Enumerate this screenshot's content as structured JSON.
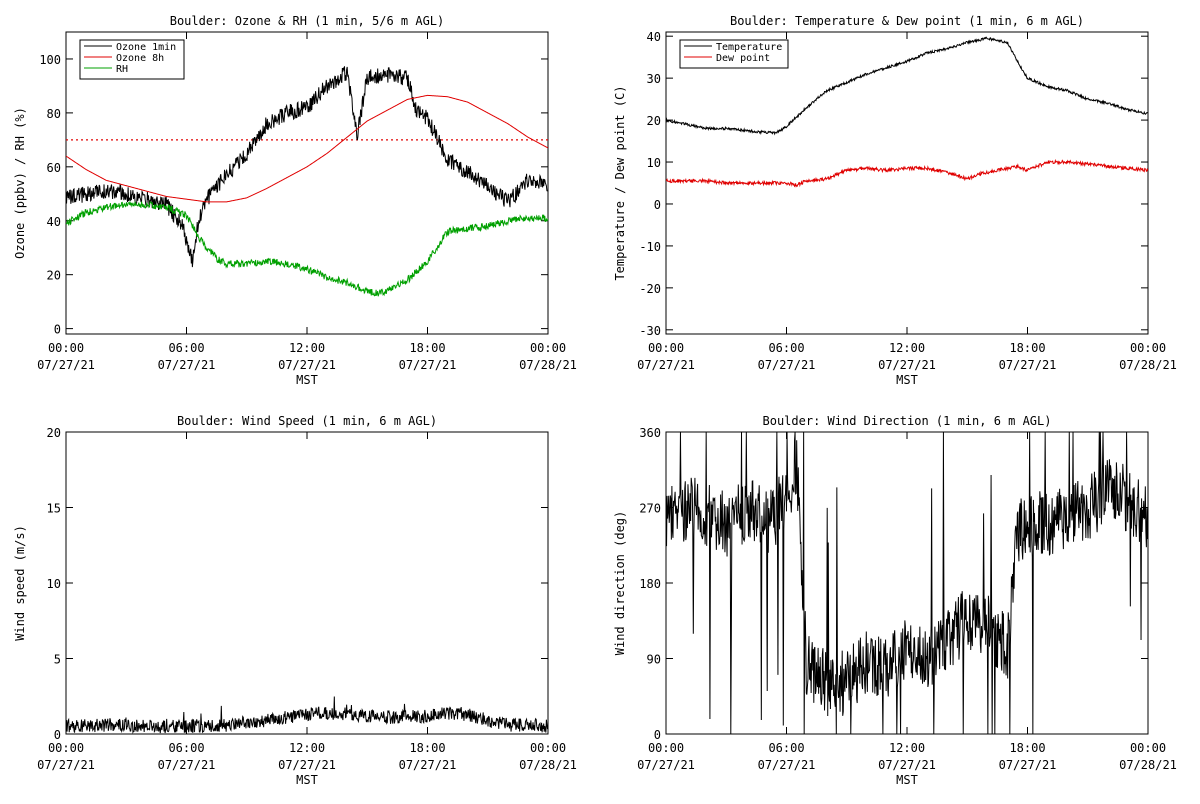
{
  "x_axis": {
    "ticks": [
      {
        "time": "00:00",
        "date": "07/27/21",
        "hour": 0
      },
      {
        "time": "06:00",
        "date": "07/27/21",
        "hour": 6
      },
      {
        "time": "12:00",
        "date": "07/27/21",
        "hour": 12
      },
      {
        "time": "18:00",
        "date": "07/27/21",
        "hour": 18
      },
      {
        "time": "00:00",
        "date": "07/28/21",
        "hour": 24
      }
    ],
    "label": "MST"
  },
  "colors": {
    "black": "#000000",
    "red": "#e00000",
    "green": "#00a000"
  },
  "chart_data": [
    {
      "type": "line",
      "title": "Boulder: Ozone & RH (1 min, 5/6 m AGL)",
      "xlabel": "MST",
      "ylabel": "Ozone (ppbv) / RH (%)",
      "xlim": [
        0,
        24
      ],
      "ylim": [
        -2,
        110
      ],
      "yticks": [
        0,
        20,
        40,
        60,
        80,
        100
      ],
      "threshold_line": {
        "value": 70,
        "color": "#e00000",
        "style": "dotted"
      },
      "legend": {
        "position": "top-left",
        "entries": [
          "Ozone 1min",
          "Ozone 8h",
          "RH"
        ]
      },
      "series": [
        {
          "name": "Ozone 1min",
          "color": "#000000",
          "noise": 3,
          "x": [
            0,
            1,
            2,
            3,
            4,
            5,
            5.8,
            6.3,
            6.6,
            7,
            8,
            9,
            10,
            11,
            12,
            13,
            14,
            14.5,
            15,
            16,
            17,
            17.5,
            18,
            19,
            20,
            21,
            22,
            23,
            24
          ],
          "y": [
            48,
            50,
            51,
            50,
            48,
            46,
            38,
            25,
            40,
            48,
            57,
            65,
            76,
            80,
            82,
            90,
            95,
            72,
            93,
            94,
            93,
            80,
            78,
            63,
            58,
            53,
            47,
            55,
            53
          ]
        },
        {
          "name": "Ozone 8h",
          "color": "#e00000",
          "noise": 0,
          "x": [
            0,
            1,
            2,
            3,
            4,
            5,
            6,
            7,
            8,
            9,
            10,
            11,
            12,
            13,
            14,
            15,
            16,
            17,
            18,
            19,
            20,
            21,
            22,
            23,
            24
          ],
          "y": [
            64,
            59,
            55,
            53,
            51,
            49,
            48,
            47,
            47,
            48.5,
            52,
            56,
            60,
            65,
            71,
            77,
            81,
            85,
            86.5,
            86,
            84,
            80,
            76,
            71,
            67
          ]
        },
        {
          "name": "RH",
          "color": "#00a000",
          "noise": 1.3,
          "x": [
            0,
            1,
            2,
            3,
            4,
            5,
            6,
            6.7,
            7.5,
            8,
            9,
            10,
            11,
            12,
            13,
            14,
            15,
            15.5,
            16,
            17,
            18,
            19,
            20,
            21,
            22,
            23,
            24
          ],
          "y": [
            39,
            43,
            45,
            46,
            46,
            45,
            42,
            33,
            26,
            24,
            24,
            25,
            24,
            22,
            19,
            17,
            14,
            13,
            14,
            18,
            25,
            36,
            37,
            38,
            40,
            41,
            41
          ]
        }
      ]
    },
    {
      "type": "line",
      "title": "Boulder: Temperature & Dew point (1 min, 6 m AGL)",
      "xlabel": "MST",
      "ylabel": "Temperature / Dew point (C)",
      "xlim": [
        0,
        24
      ],
      "ylim": [
        -31,
        41
      ],
      "yticks": [
        -30,
        -20,
        -10,
        0,
        10,
        20,
        30,
        40
      ],
      "legend": {
        "position": "top-left",
        "entries": [
          "Temperature",
          "Dew point"
        ]
      },
      "series": [
        {
          "name": "Temperature",
          "color": "#000000",
          "noise": 0.3,
          "x": [
            0,
            1,
            2,
            3,
            4,
            5,
            5.5,
            6,
            7,
            8,
            9,
            10,
            11,
            12,
            13,
            14,
            15,
            16,
            17,
            17.5,
            18,
            19,
            20,
            21,
            22,
            23,
            24
          ],
          "y": [
            20,
            19,
            18,
            18,
            17.5,
            17,
            17,
            18.5,
            23,
            27,
            29,
            31,
            32.5,
            34,
            36,
            37,
            38.5,
            39.5,
            38.5,
            34,
            30,
            28,
            27,
            25,
            24,
            22.5,
            21.5
          ]
        },
        {
          "name": "Dew point",
          "color": "#e00000",
          "noise": 0.4,
          "x": [
            0,
            1,
            2,
            3,
            4,
            5,
            6,
            6.5,
            7,
            8,
            9,
            10,
            11,
            12,
            13,
            14,
            15,
            15.5,
            16,
            17,
            17.5,
            18,
            19,
            20,
            21,
            22,
            23,
            24
          ],
          "y": [
            5.5,
            5.5,
            5.5,
            5,
            5,
            5,
            5,
            4.5,
            5.5,
            6,
            8,
            8.5,
            8,
            8.5,
            8.5,
            7.5,
            6,
            7,
            7.5,
            8.5,
            9,
            8,
            10,
            10,
            9.5,
            9,
            8.5,
            8
          ]
        }
      ]
    },
    {
      "type": "line",
      "title": "Boulder: Wind Speed (1 min, 6 m AGL)",
      "xlabel": "MST",
      "ylabel": "Wind speed (m/s)",
      "xlim": [
        0,
        24
      ],
      "ylim": [
        0,
        20
      ],
      "yticks": [
        0,
        5,
        10,
        15,
        20
      ],
      "series": [
        {
          "name": "",
          "color": "#000000",
          "noise": 0.45,
          "clip_min": 0,
          "x": [
            0,
            2,
            4,
            6,
            8,
            10,
            12,
            13,
            14,
            15,
            16,
            18,
            19,
            20,
            21,
            22,
            23,
            24
          ],
          "y": [
            0.5,
            0.6,
            0.5,
            0.5,
            0.6,
            0.9,
            1.3,
            1.4,
            1.3,
            1.2,
            1.1,
            1.2,
            1.4,
            1.3,
            0.9,
            0.6,
            0.6,
            0.5
          ]
        }
      ]
    },
    {
      "type": "line",
      "title": "Boulder: Wind Direction (1 min, 6 m AGL)",
      "xlabel": "MST",
      "ylabel": "Wind direction (deg)",
      "xlim": [
        0,
        24
      ],
      "ylim": [
        0,
        360
      ],
      "yticks": [
        0,
        90,
        180,
        270,
        360
      ],
      "series": [
        {
          "name": "",
          "color": "#000000",
          "noise": 40,
          "clip_min": 0,
          "clip_max": 360,
          "x": [
            0,
            1,
            2,
            3,
            4,
            5,
            6,
            6.5,
            7,
            8,
            9,
            10,
            11,
            12,
            13,
            14,
            15,
            16,
            17,
            17.5,
            18,
            19,
            20,
            21,
            22,
            23,
            24
          ],
          "y": [
            250,
            270,
            260,
            250,
            270,
            250,
            280,
            320,
            80,
            60,
            60,
            90,
            80,
            100,
            90,
            110,
            140,
            130,
            100,
            240,
            250,
            250,
            260,
            270,
            290,
            280,
            260
          ]
        }
      ]
    }
  ]
}
